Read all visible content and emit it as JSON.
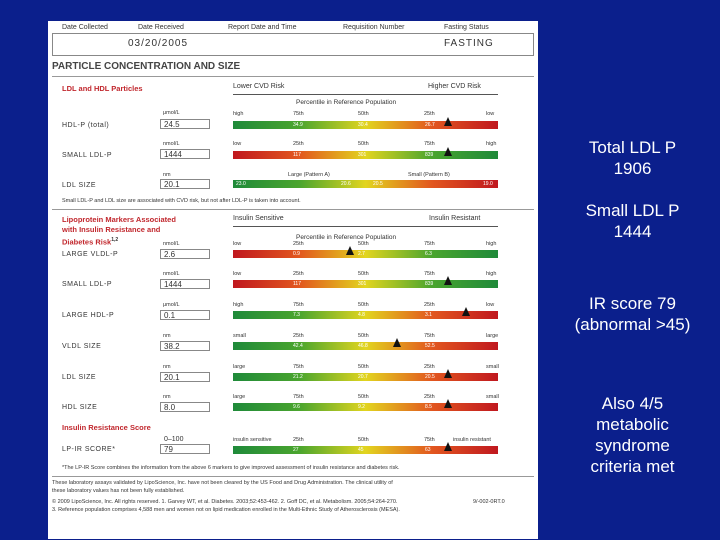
{
  "header": {
    "date_collected": "Date Collected",
    "date_received": "Date Received",
    "report_date": "Report Date and Time",
    "requisition": "Requisition Number",
    "fasting_status": "Fasting Status",
    "date_received_value": "03/20/2005",
    "fasting_value": "FASTING"
  },
  "title": "PARTICLE CONCENTRATION AND SIZE",
  "section1": {
    "heading": "LDL and HDL Particles",
    "lower_risk": "Lower CVD Risk",
    "higher_risk": "Higher CVD Risk",
    "percentile": "Percentile in Reference Population",
    "rows": [
      {
        "label": "HDL-P (total)",
        "unit": "μmol/L",
        "value": "24.5",
        "ticks": [
          "high",
          "75th",
          "50th",
          "25th",
          "low"
        ],
        "bar": [
          "34.9",
          "30.4",
          "26.7"
        ]
      },
      {
        "label": "SMALL LDL-P",
        "unit": "nmol/L",
        "value": "1444",
        "ticks": [
          "low",
          "25th",
          "50th",
          "75th",
          "high"
        ],
        "bar": [
          "117",
          "301",
          "839"
        ]
      },
      {
        "label": "LDL SIZE",
        "unit": "nm",
        "value": "20.1",
        "ticks": [
          "Large (Pattern A)",
          "Small (Pattern B)"
        ],
        "bar": [
          "23.0",
          "20.6",
          "20.5",
          "19.0"
        ]
      }
    ],
    "note": "Small LDL-P and LDL size are associated with CVD risk, but not after LDL-P is taken into account."
  },
  "section2": {
    "heading_l1": "Lipoprotein Markers Associated",
    "heading_l2": "with Insulin Resistance and",
    "heading_l3": "Diabetes Risk",
    "sensitive": "Insulin Sensitive",
    "resistant": "Insulin Resistant",
    "percentile": "Percentile in Reference Population",
    "rows": [
      {
        "label": "LARGE VLDL-P",
        "unit": "nmol/L",
        "value": "2.6",
        "ticks": [
          "low",
          "25th",
          "50th",
          "75th",
          "high"
        ],
        "bar": [
          "0.9",
          "2.7",
          "6.3"
        ]
      },
      {
        "label": "SMALL LDL-P",
        "unit": "nmol/L",
        "value": "1444",
        "ticks": [
          "low",
          "25th",
          "50th",
          "75th",
          "high"
        ],
        "bar": [
          "117",
          "301",
          "839"
        ]
      },
      {
        "label": "LARGE HDL-P",
        "unit": "μmol/L",
        "value": "0.1",
        "ticks": [
          "high",
          "75th",
          "50th",
          "25th",
          "low"
        ],
        "bar": [
          "7.3",
          "4.8",
          "3.1"
        ]
      },
      {
        "label": "VLDL SIZE",
        "unit": "nm",
        "value": "38.2",
        "ticks": [
          "small",
          "25th",
          "50th",
          "75th",
          "large"
        ],
        "bar": [
          "42.4",
          "46.8",
          "52.5"
        ]
      },
      {
        "label": "LDL SIZE",
        "unit": "nm",
        "value": "20.1",
        "ticks": [
          "large",
          "75th",
          "50th",
          "25th",
          "small"
        ],
        "bar": [
          "21.2",
          "20.7",
          "20.5"
        ]
      },
      {
        "label": "HDL SIZE",
        "unit": "nm",
        "value": "8.0",
        "ticks": [
          "large",
          "75th",
          "50th",
          "25th",
          "small"
        ],
        "bar": [
          "9.6",
          "9.2",
          "8.5"
        ]
      }
    ]
  },
  "section3": {
    "heading": "Insulin Resistance Score",
    "range": "0–100",
    "label": "LP-IR SCORE*",
    "value": "79",
    "ticks": [
      "insulin sensitive",
      "25th",
      "50th",
      "75th",
      "insulin resistant"
    ],
    "bar": [
      "27",
      "45",
      "63"
    ]
  },
  "footnotes": {
    "f1": "*The LP-IR Score combines the information from the above 6 markers to give improved assessment of insulin resistance and diabetes risk.",
    "f2": "These laboratory assays validated by LipoScience, Inc. have not been cleared by the US Food and Drug Administration. The clinical utility of",
    "f3": "these laboratory values has not been fully established.",
    "f4": "© 2009 LipoScience, Inc. All rights reserved. 1. Garvey WT, et al. Diabetes. 2003;52:453-462. 2. Goff DC, et al. Metabolism. 2005;54:264-270.",
    "f5": "3. Reference population comprises 4,588 men and women not on lipid medication enrolled in the Multi-Ethnic Study of Atherosclerosis (MESA).",
    "code": "9/-002-0RT.0"
  },
  "side_notes": [
    {
      "l1": "Total LDL P",
      "l2": "1906"
    },
    {
      "l1": "Small LDL P",
      "l2": "1444"
    },
    {
      "l1": "IR score 79",
      "l2": "(abnormal >45)"
    },
    {
      "l1": "Also 4/5",
      "l2": "metabolic",
      "l3": "syndrome",
      "l4": "criteria met"
    }
  ],
  "markers": {
    "s1_hdlp_pct": 81,
    "s1_smallldl_pct": 81,
    "s2_vldl_pct": 44,
    "s2_smallldl_pct": 81,
    "s2_largehdl_pct": 88,
    "s2_vldlsize_pct": 62,
    "s2_ldlsize_pct": 81,
    "s2_hdlsize_pct": 81,
    "s3_lpir_pct": 81
  }
}
